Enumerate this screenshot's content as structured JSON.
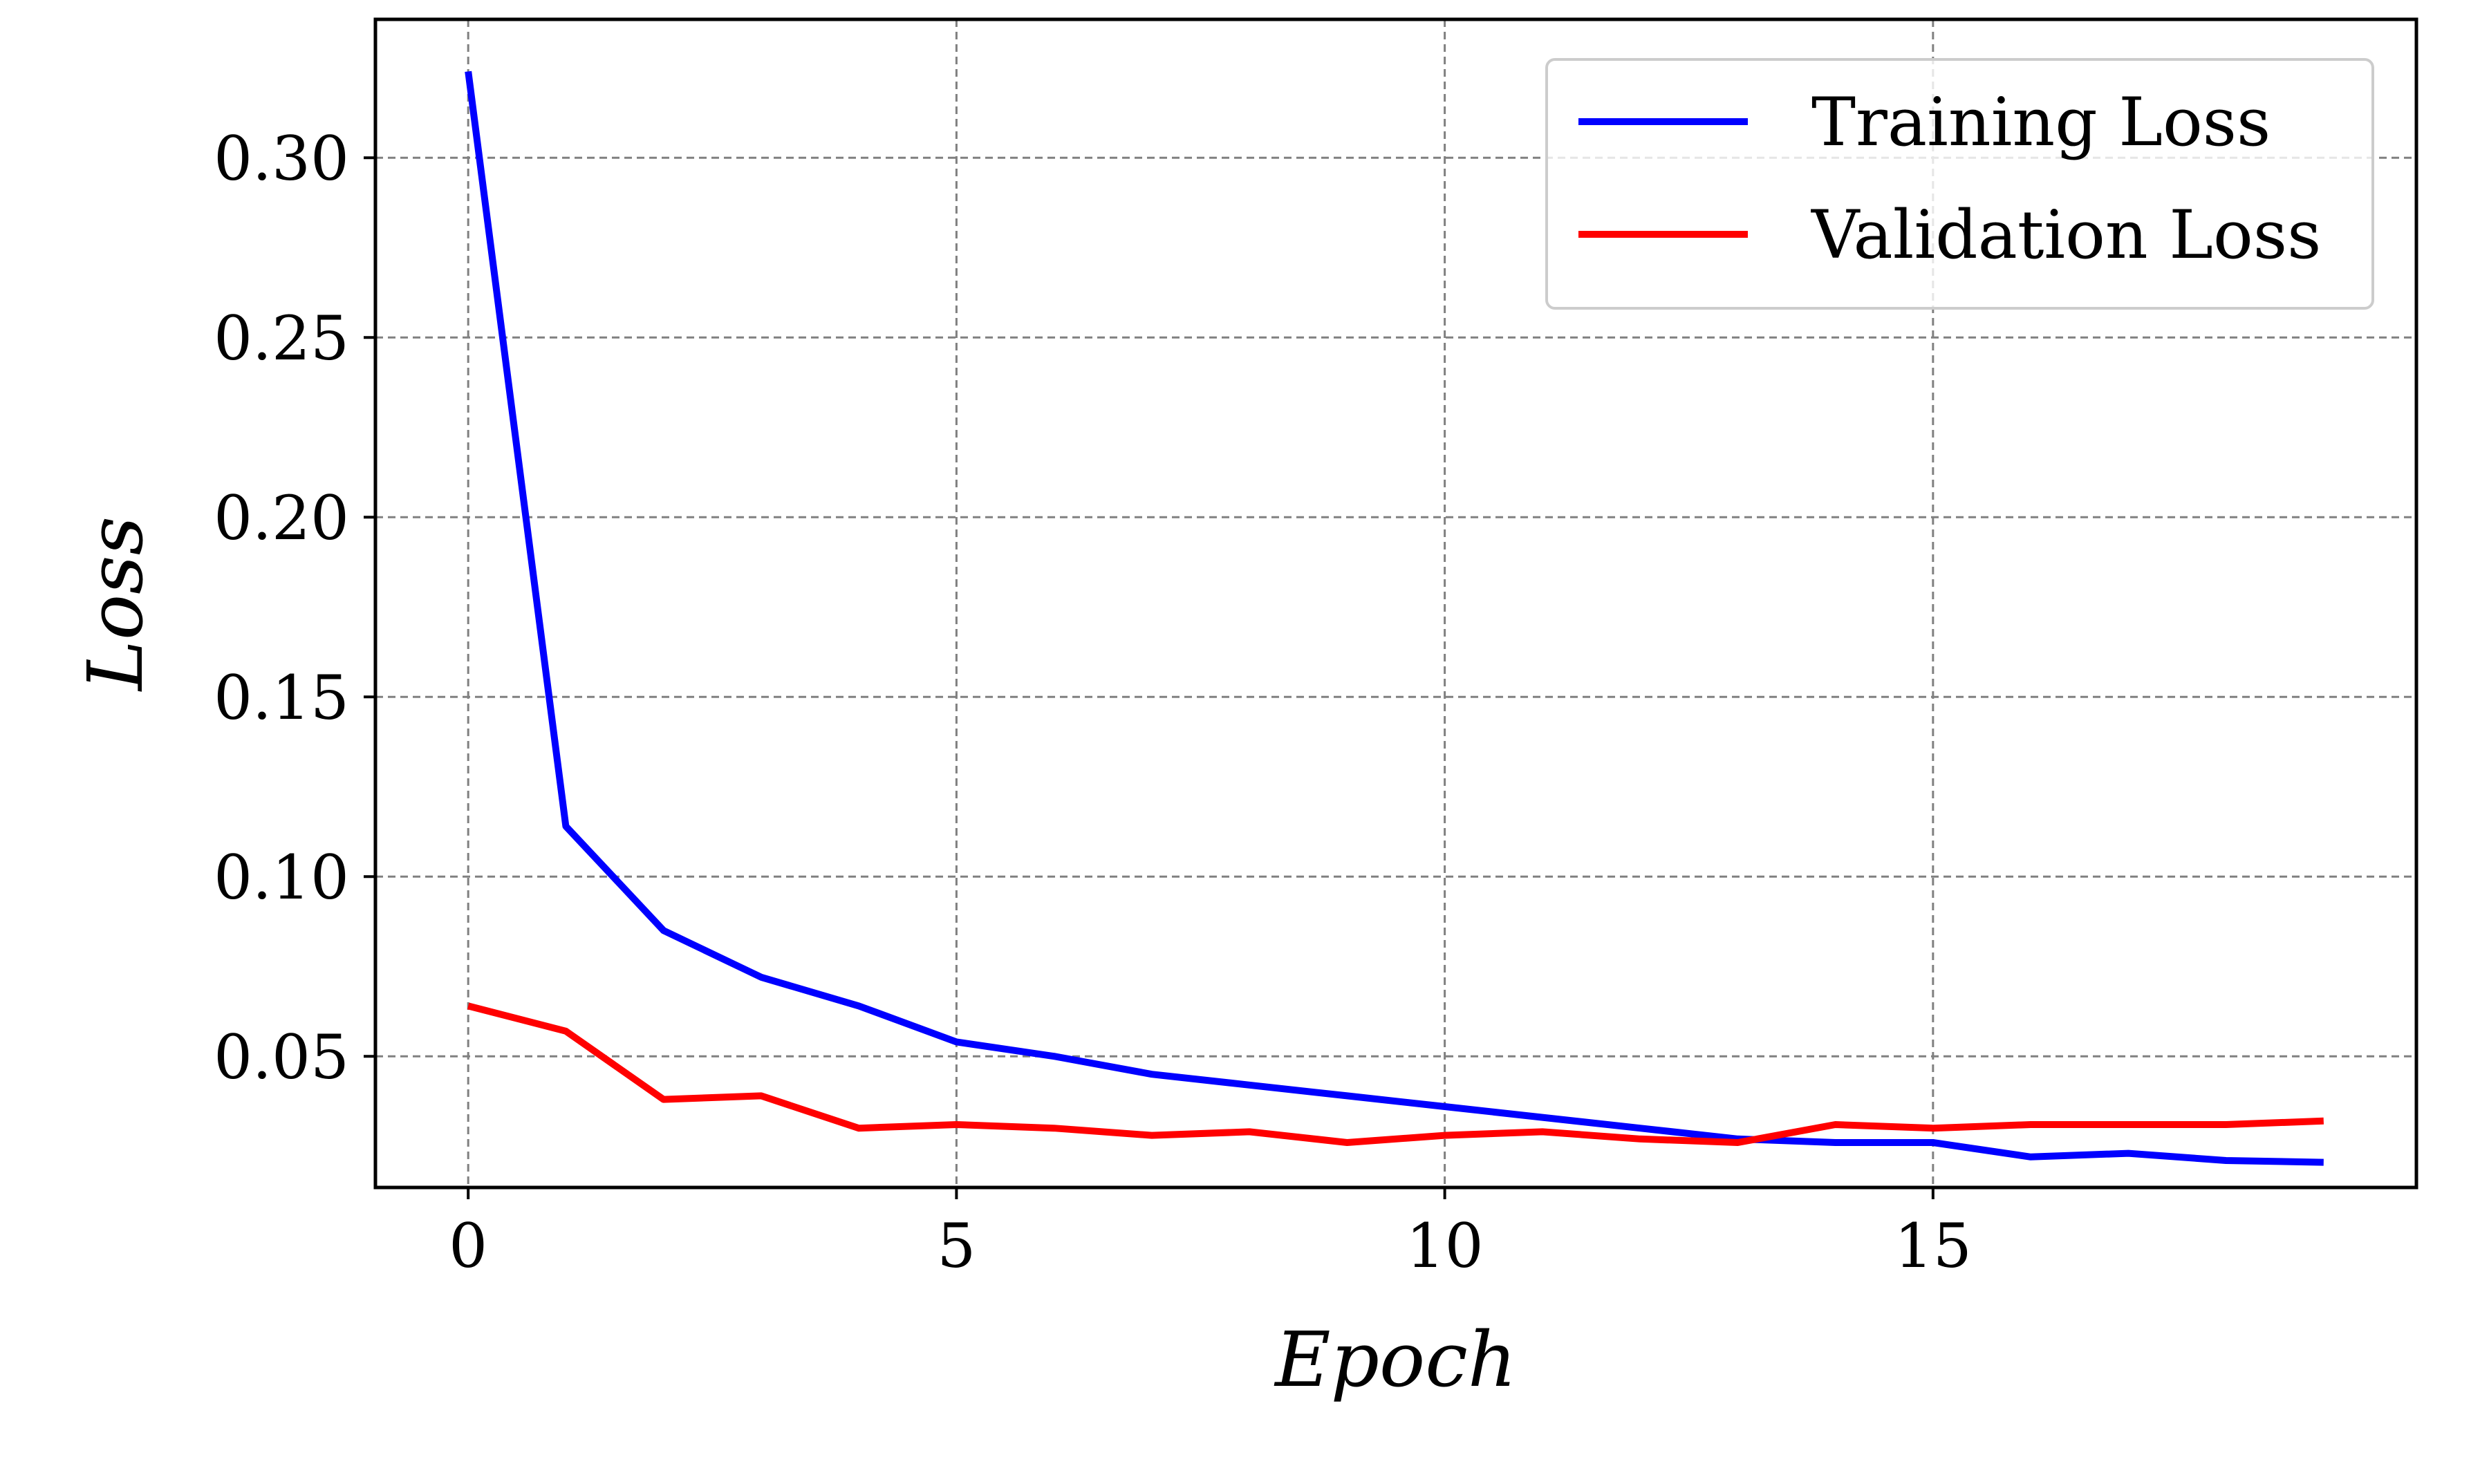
{
  "chart_data": {
    "type": "line",
    "title": "",
    "xlabel": "Epoch",
    "ylabel": "Loss",
    "xlim": [
      -0.95,
      19.95
    ],
    "ylim": [
      0.0135,
      0.3385
    ],
    "xticks": [
      0,
      5,
      10,
      15
    ],
    "xtick_labels": [
      "0",
      "5",
      "10",
      "15"
    ],
    "yticks": [
      0.05,
      0.1,
      0.15,
      0.2,
      0.25,
      0.3
    ],
    "ytick_labels": [
      "0.05",
      "0.10",
      "0.15",
      "0.20",
      "0.25",
      "0.30"
    ],
    "grid": true,
    "legend_position": "top-right",
    "x": [
      0,
      1,
      2,
      3,
      4,
      5,
      6,
      7,
      8,
      9,
      10,
      11,
      12,
      13,
      14,
      15,
      16,
      17,
      18,
      19
    ],
    "series": [
      {
        "name": "Training Loss",
        "color": "#0000ff",
        "values": [
          0.324,
          0.114,
          0.085,
          0.072,
          0.064,
          0.054,
          0.05,
          0.045,
          0.042,
          0.039,
          0.036,
          0.033,
          0.03,
          0.027,
          0.026,
          0.026,
          0.022,
          0.023,
          0.021,
          0.0205
        ]
      },
      {
        "name": "Validation Loss",
        "color": "#ff0000",
        "values": [
          0.064,
          0.057,
          0.038,
          0.039,
          0.03,
          0.031,
          0.03,
          0.028,
          0.029,
          0.026,
          0.028,
          0.029,
          0.027,
          0.026,
          0.031,
          0.03,
          0.031,
          0.031,
          0.031,
          0.032
        ]
      }
    ]
  }
}
